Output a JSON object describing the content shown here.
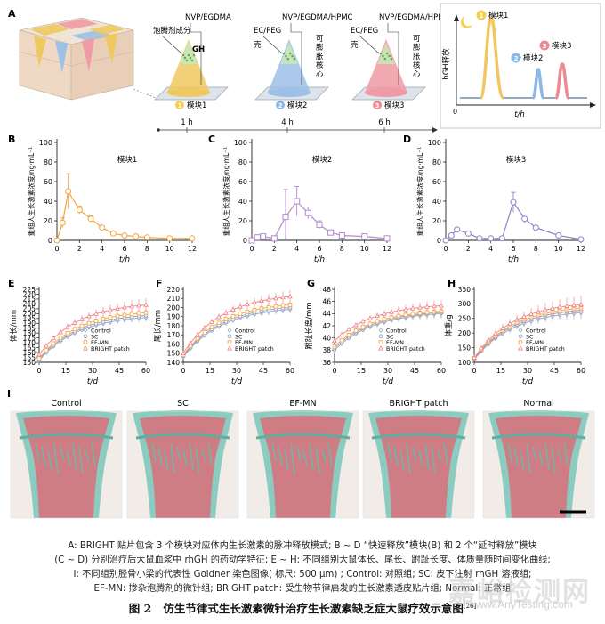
{
  "panel_letters": [
    "A",
    "B",
    "C",
    "D",
    "E",
    "F",
    "G",
    "H",
    "I"
  ],
  "panelA": {
    "modules": [
      {
        "top": "NVP/EGDMA",
        "left": "泡腾剂成分",
        "inner": "GH",
        "side": "",
        "label": "模块1",
        "time": "1 h",
        "color": "#f0c860",
        "dot": "#f5cf55"
      },
      {
        "top": "NVP/EGDMA/HPMC",
        "left": "EC/PEG",
        "shell": "壳",
        "inner": "",
        "side": "可膨胀核心",
        "label": "模块2",
        "time": "4 h",
        "color": "#9cc0e6",
        "dot": "#8db8e6"
      },
      {
        "top": "NVP/EGDMA/HPMC",
        "left": "EC/PEG",
        "shell": "壳",
        "inner": "",
        "side": "可膨胀核心",
        "label": "模块3",
        "time": "6 h",
        "color": "#ef9aa4",
        "dot": "#ec8a94"
      }
    ],
    "release_chart": {
      "ylabel": "hGH释放",
      "xlabel": "t/h",
      "origin": "0",
      "labels": [
        "模块1",
        "模块2",
        "模块3"
      ]
    }
  },
  "colors": {
    "orange": "#f2a53b",
    "purple": "#b48ad0",
    "lavender": "#8c84c8",
    "control": "#9aa6c2",
    "sc": "#7e9cd6",
    "efmn": "#f2a33e",
    "bright": "#f07f86"
  },
  "chart_data": [
    {
      "type": "line",
      "panel": "B",
      "title": "模块1",
      "xlabel": "t/h",
      "ylabel": "重组人生长激素浓度/ng·mL⁻¹",
      "ylim": [
        0,
        100
      ],
      "yticks": [
        0,
        20,
        40,
        60,
        80,
        100
      ],
      "xlim": [
        0,
        12
      ],
      "xticks": [
        0,
        2,
        4,
        6,
        8,
        10,
        12
      ],
      "x": [
        0,
        0.5,
        1,
        2,
        3,
        4,
        5,
        6,
        7,
        8,
        10,
        12
      ],
      "values": [
        0,
        18,
        50,
        31,
        22,
        13,
        7,
        5,
        4,
        3,
        2,
        2
      ],
      "err": [
        0,
        5,
        18,
        4,
        3,
        2,
        1,
        1,
        1,
        1,
        1,
        0
      ],
      "color": "#f2a53b",
      "marker": "circle"
    },
    {
      "type": "line",
      "panel": "C",
      "title": "模块2",
      "xlabel": "t/h",
      "ylabel": "重组人生长激素浓度/ng·mL⁻¹",
      "ylim": [
        0,
        100
      ],
      "yticks": [
        0,
        20,
        40,
        60,
        80,
        100
      ],
      "xlim": [
        0,
        12
      ],
      "xticks": [
        0,
        2,
        4,
        6,
        8,
        10,
        12
      ],
      "x": [
        0,
        0.5,
        1,
        2,
        3,
        4,
        5,
        6,
        7,
        8,
        10,
        12
      ],
      "values": [
        0,
        3,
        4,
        2,
        24,
        40,
        28,
        16,
        8,
        5,
        4,
        2
      ],
      "err": [
        0,
        2,
        2,
        2,
        28,
        15,
        6,
        4,
        2,
        1,
        1,
        1
      ],
      "color": "#b48ad0",
      "marker": "square"
    },
    {
      "type": "line",
      "panel": "D",
      "title": "模块3",
      "xlabel": "t/h",
      "ylabel": "重组人生长激素浓度/ng·mL⁻¹",
      "ylim": [
        0,
        100
      ],
      "yticks": [
        0,
        20,
        40,
        60,
        80,
        100
      ],
      "xlim": [
        0,
        12
      ],
      "xticks": [
        0,
        2,
        4,
        6,
        8,
        10,
        12
      ],
      "x": [
        0,
        0.5,
        1,
        2,
        3,
        4,
        5,
        6,
        7,
        8,
        10,
        12
      ],
      "values": [
        0,
        5,
        11,
        7,
        2,
        2,
        2,
        39,
        22,
        13,
        5,
        1
      ],
      "err": [
        0,
        2,
        2,
        2,
        1,
        1,
        1,
        10,
        4,
        2,
        1,
        1
      ],
      "color": "#8c84c8",
      "marker": "circle"
    },
    {
      "type": "line",
      "panel": "E",
      "ylabel": "体长/mm",
      "xlabel": "t/d",
      "ylim": [
        150,
        225
      ],
      "yticks": [
        150,
        155,
        160,
        165,
        170,
        175,
        180,
        185,
        190,
        195,
        200,
        205,
        210,
        215,
        220,
        225
      ],
      "ytick_labels": [
        "150",
        "155",
        "160",
        "165",
        "170",
        "175",
        "180",
        "185",
        "190",
        "195",
        "200",
        "205",
        "210",
        "215",
        "220",
        "225"
      ],
      "xlim": [
        0,
        60
      ],
      "xticks": [
        0,
        15,
        30,
        45,
        60
      ],
      "legend": [
        "Control",
        "SC",
        "EF-MN",
        "BRIGHT patch"
      ],
      "series": [
        {
          "name": "Control",
          "start": 152,
          "end": 196,
          "err": 3
        },
        {
          "name": "SC",
          "start": 153,
          "end": 198,
          "err": 3
        },
        {
          "name": "EF-MN",
          "start": 154,
          "end": 201,
          "err": 3
        },
        {
          "name": "BRIGHT patch",
          "start": 158,
          "end": 209,
          "err": 5
        }
      ]
    },
    {
      "type": "line",
      "panel": "F",
      "ylabel": "尾长/mm",
      "xlabel": "t/d",
      "ylim": [
        140,
        220
      ],
      "yticks": [
        140,
        150,
        160,
        170,
        180,
        190,
        200,
        210,
        220
      ],
      "xlim": [
        0,
        60
      ],
      "xticks": [
        0,
        15,
        30,
        45,
        60
      ],
      "legend": [
        "Control",
        "SC",
        "EF-MN",
        "BRIGHT patch"
      ],
      "series": [
        {
          "name": "Control",
          "start": 146,
          "end": 198,
          "err": 3
        },
        {
          "name": "SC",
          "start": 147,
          "end": 200,
          "err": 3
        },
        {
          "name": "EF-MN",
          "start": 148,
          "end": 203,
          "err": 3
        },
        {
          "name": "BRIGHT patch",
          "start": 150,
          "end": 212,
          "err": 5
        }
      ]
    },
    {
      "type": "line",
      "panel": "G",
      "ylabel": "跗趾长度/mm",
      "xlabel": "t/d",
      "ylim": [
        36,
        48
      ],
      "yticks": [
        36,
        38,
        40,
        42,
        44,
        46,
        48
      ],
      "xlim": [
        0,
        60
      ],
      "xticks": [
        0,
        15,
        30,
        45,
        60
      ],
      "legend": [
        "Control",
        "SC",
        "EF-MN",
        "BRIGHT patch"
      ],
      "series": [
        {
          "name": "Control",
          "start": 38,
          "end": 44,
          "err": 0.6
        },
        {
          "name": "SC",
          "start": 38.3,
          "end": 44.2,
          "err": 0.6
        },
        {
          "name": "EF-MN",
          "start": 38.6,
          "end": 44.4,
          "err": 0.6
        },
        {
          "name": "BRIGHT patch",
          "start": 39.5,
          "end": 45.3,
          "err": 0.7
        }
      ]
    },
    {
      "type": "line",
      "panel": "H",
      "ylabel": "体重/g",
      "xlabel": "t/d",
      "ylim": [
        100,
        350
      ],
      "yticks": [
        100,
        150,
        200,
        250,
        300,
        350
      ],
      "xlim": [
        0,
        60
      ],
      "xticks": [
        0,
        15,
        30,
        45,
        60
      ],
      "legend": [
        "Control",
        "SC",
        "EF-MN",
        "BRIGHT patch"
      ],
      "series": [
        {
          "name": "Control",
          "start": 110,
          "end": 270,
          "err": 15
        },
        {
          "name": "SC",
          "start": 112,
          "end": 278,
          "err": 15
        },
        {
          "name": "EF-MN",
          "start": 114,
          "end": 285,
          "err": 15
        },
        {
          "name": "BRIGHT patch",
          "start": 116,
          "end": 298,
          "err": 22
        }
      ]
    }
  ],
  "panelI": {
    "labels": [
      "Control",
      "SC",
      "EF-MN",
      "BRIGHT patch",
      "Normal"
    ]
  },
  "caption": {
    "line1": "A: BRIGHT 贴片包含 3 个模块对应体内生长激素的脉冲释放模式; B ~ D “快速释放”模块(B) 和 2 个“延时释放”模块",
    "line2": "(C ~ D) 分别治疗后大鼠血浆中 rhGH 的药动学特征; E ~ H: 不同组别大鼠体长、尾长、跗趾长度、体质量随时间变化曲线;",
    "line3": "I: 不同组别胫骨小梁的代表性 Goldner 染色图像( 标尺: 500 μm) ; Control: 对照组; SC: 皮下注射 rhGH 溶液组;",
    "line4": "EF-MN: 掺杂泡腾剂的微针组; BRIGHT patch: 受生物节律启发的生长激素透皮贴片组; Normal: 正常组",
    "fig_no": "图 2",
    "fig_title": "仿生节律式生长激素微针治疗生长激素缺乏症大鼠疗效示意图",
    "ref": "[26]"
  },
  "watermark": {
    "main": "嘉峪检测网",
    "sub": "www.AnyTesting.com"
  }
}
